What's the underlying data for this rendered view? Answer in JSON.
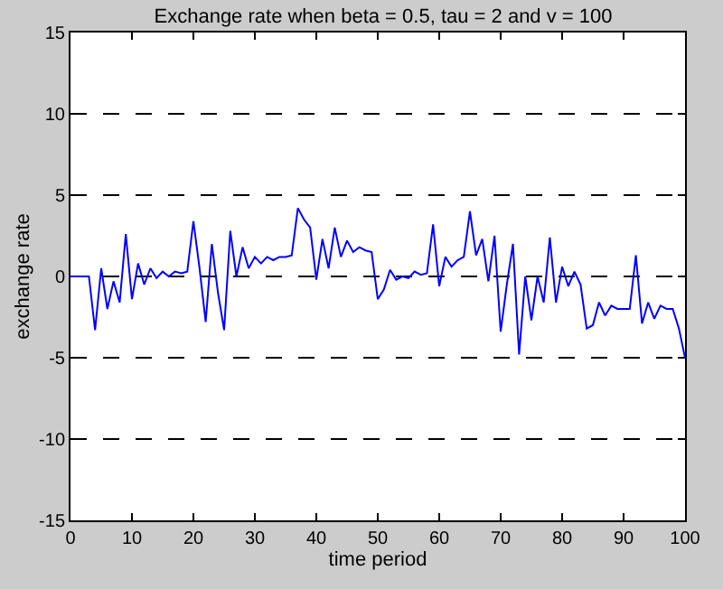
{
  "chart_data": {
    "type": "line",
    "title": "Exchange rate when beta = 0.5, tau = 2 and v = 100",
    "xlabel": "time period",
    "ylabel": "exchange rate",
    "x": [
      0,
      1,
      2,
      3,
      4,
      5,
      6,
      7,
      8,
      9,
      10,
      11,
      12,
      13,
      14,
      15,
      16,
      17,
      18,
      19,
      20,
      21,
      22,
      23,
      24,
      25,
      26,
      27,
      28,
      29,
      30,
      31,
      32,
      33,
      34,
      35,
      36,
      37,
      38,
      39,
      40,
      41,
      42,
      43,
      44,
      45,
      46,
      47,
      48,
      49,
      50,
      51,
      52,
      53,
      54,
      55,
      56,
      57,
      58,
      59,
      60,
      61,
      62,
      63,
      64,
      65,
      66,
      67,
      68,
      69,
      70,
      71,
      72,
      73,
      74,
      75,
      76,
      77,
      78,
      79,
      80,
      81,
      82,
      83,
      84,
      85,
      86,
      87,
      88,
      89,
      90,
      91,
      92,
      93,
      94,
      95,
      96,
      97,
      98,
      99,
      100
    ],
    "series": [
      {
        "color": "#0000ff",
        "values": [
          0,
          0,
          0,
          0,
          -3.3,
          0.5,
          -2,
          -0.3,
          -1.6,
          2.6,
          -1.4,
          0.8,
          -0.5,
          0.5,
          -0.1,
          0.3,
          0,
          0.3,
          0.2,
          0.3,
          3.4,
          0.5,
          -2.8,
          2,
          -1,
          -3.3,
          2.8,
          0,
          1.8,
          0.5,
          1.2,
          0.8,
          1.2,
          1,
          1.2,
          1.2,
          1.3,
          4.2,
          3.5,
          3,
          -0.2,
          2.3,
          0.5,
          3,
          1.2,
          2.2,
          1.5,
          1.8,
          1.6,
          1.5,
          -1.4,
          -0.8,
          0.4,
          -0.2,
          0,
          -0.1,
          0.3,
          0.1,
          0.2,
          3.2,
          -0.6,
          1.2,
          0.6,
          1,
          1.2,
          4,
          1.3,
          2.3,
          -0.3,
          2.5,
          -3.4,
          -0.5,
          2,
          -4.8,
          0,
          -2.7,
          0,
          -1.6,
          2.4,
          -1.6,
          0.6,
          -0.6,
          0.3,
          -0.5,
          -3.2,
          -3,
          -1.6,
          -2.4,
          -1.8,
          -2,
          -2,
          -2,
          1.3,
          -2.9,
          -1.6,
          -2.6,
          -1.8,
          -2,
          -2,
          -3.2,
          -5
        ]
      }
    ],
    "xlim": [
      0,
      100
    ],
    "ylim": [
      -15,
      15
    ],
    "xticks": [
      0,
      10,
      20,
      30,
      40,
      50,
      60,
      70,
      80,
      90,
      100
    ],
    "yticks": [
      -15,
      -10,
      -5,
      0,
      5,
      10,
      15
    ],
    "grid": "y",
    "line_style": "solid",
    "marker": "none"
  }
}
